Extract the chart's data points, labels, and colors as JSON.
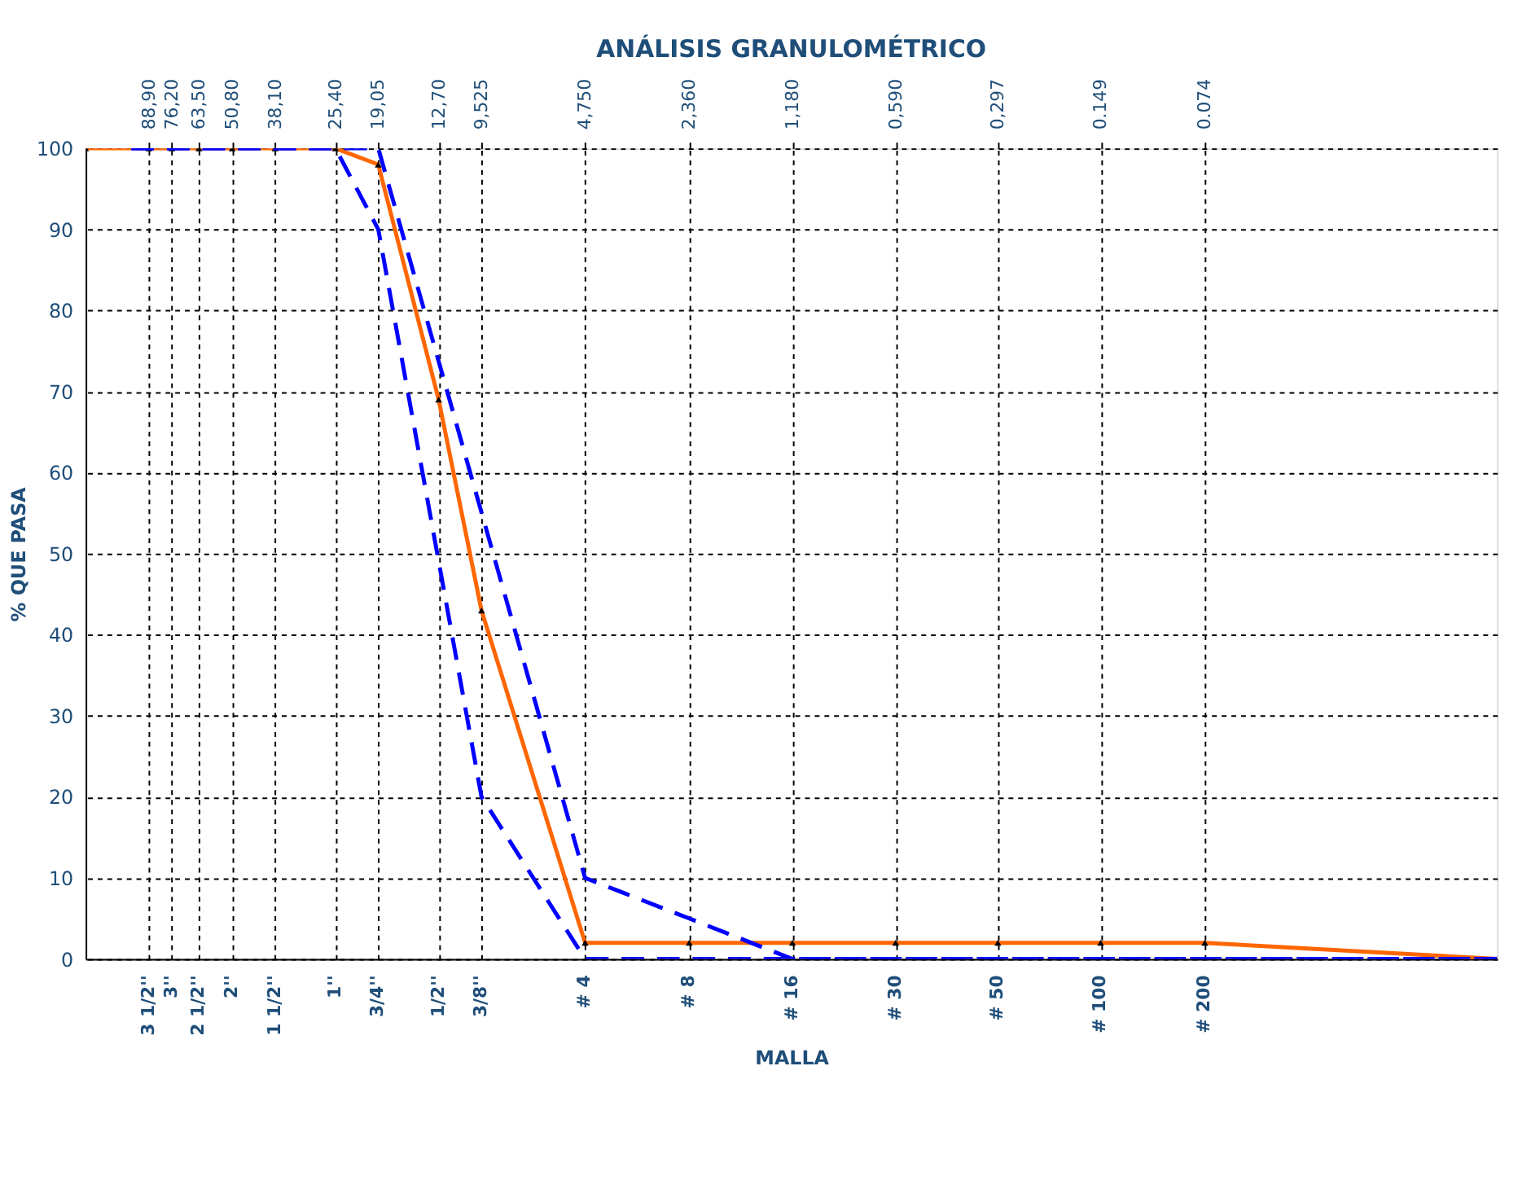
{
  "chart_data": {
    "type": "line",
    "title": "ANÁLISIS GRANULOMÉTRICO",
    "xlabel": "MALLA",
    "ylabel": "% QUE PASA",
    "log": "x",
    "grid": true,
    "legend": false,
    "xlim": [
      136,
      0.0104
    ],
    "ylim": [
      0,
      100
    ],
    "yticks": [
      0,
      10,
      20,
      30,
      40,
      50,
      60,
      70,
      80,
      90,
      100
    ],
    "xticks": [
      {
        "value": 88.9,
        "label": "88,90"
      },
      {
        "value": 76.2,
        "label": "76,20"
      },
      {
        "value": 63.5,
        "label": "63,50"
      },
      {
        "value": 50.8,
        "label": "50,80"
      },
      {
        "value": 38.1,
        "label": "38,10"
      },
      {
        "value": 25.4,
        "label": "25,40"
      },
      {
        "value": 19.05,
        "label": "19,05"
      },
      {
        "value": 12.7,
        "label": "12,70"
      },
      {
        "value": 9.525,
        "label": "9,525"
      },
      {
        "value": 4.75,
        "label": "4,750"
      },
      {
        "value": 2.36,
        "label": "2,360"
      },
      {
        "value": 1.18,
        "label": "1,180"
      },
      {
        "value": 0.59,
        "label": "0,590"
      },
      {
        "value": 0.297,
        "label": "0,297"
      },
      {
        "value": 0.149,
        "label": "0.149"
      },
      {
        "value": 0.074,
        "label": "0.074"
      }
    ],
    "annotations": [
      "3 1/2''",
      "3''",
      "2 1/2''",
      "2''",
      "1 1/2''",
      "1''",
      "3/4''",
      "1/2''",
      "3/8''",
      "# 4",
      "# 8",
      "# 16",
      "# 30",
      "# 50",
      "# 100",
      "# 200"
    ],
    "series": [
      {
        "color": "#ff6600",
        "line_style": "solid",
        "marker": "triangle",
        "x": [
          136,
          88.9,
          76.2,
          63.5,
          50.8,
          38.1,
          25.4,
          19.05,
          12.7,
          9.525,
          4.75,
          2.36,
          1.18,
          0.59,
          0.297,
          0.149,
          0.074,
          0.0104
        ],
        "values": [
          100,
          100,
          100,
          100,
          100,
          100,
          100,
          98,
          69,
          43,
          2,
          2,
          2,
          2,
          2,
          2,
          2,
          0
        ]
      },
      {
        "color": "#0000ff",
        "line_style": "dashed",
        "x": [
          100,
          25.4,
          19.05,
          4.75,
          2.36,
          1.18,
          0.0104
        ],
        "values": [
          100,
          100,
          100,
          10,
          5,
          0,
          0
        ]
      },
      {
        "color": "#0000ff",
        "line_style": "dashed",
        "x": [
          100,
          25.4,
          19.05,
          9.525,
          4.75,
          0.0104
        ],
        "values": [
          100,
          100,
          90,
          20,
          0,
          0
        ]
      }
    ]
  }
}
